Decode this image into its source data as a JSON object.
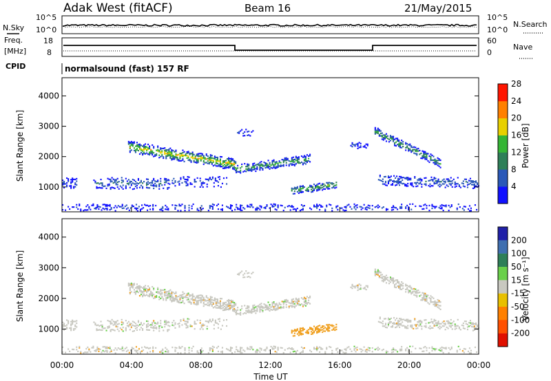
{
  "header": {
    "station": "Adak West (fitACF)",
    "beam": "Beam 16",
    "date": "21/May/2015"
  },
  "strip": {
    "nsky_label": "N.Sky",
    "nsky_ticks": [
      "10^5",
      "10^0"
    ],
    "nsearch_label": "N.Search",
    "nsearch_ticks": [
      "10^5",
      "10^0"
    ],
    "freq_label_1": "Freq.",
    "freq_label_2": "[MHz]",
    "freq_ticks": [
      "18",
      "8"
    ],
    "nave_label": "Nave",
    "nave_ticks": [
      "60",
      "0"
    ],
    "cpid_label": "CPID",
    "cpid_text": "normalsound (fast) 157 RF"
  },
  "chart_data": [
    {
      "type": "heatmap",
      "panel": "power",
      "ylabel": "Slant Range [km]",
      "xlabel": "",
      "ylim": [
        180,
        4600
      ],
      "yticks": [
        "1000",
        "2000",
        "3000",
        "4000"
      ],
      "colorbar": {
        "label": "Power [dB]",
        "ticks": [
          "4",
          "8",
          "12",
          "16",
          "20",
          "24",
          "28"
        ],
        "colors": [
          "#1010ff",
          "#2a58b8",
          "#2e7f58",
          "#35b535",
          "#e8d000",
          "#ff8000",
          "#ff1500"
        ]
      },
      "bands": [
        {
          "name": "4-8 dB",
          "color": "#1010ff"
        },
        {
          "name": "8-12 dB",
          "color": "#2a58b8"
        },
        {
          "name": "12-16 dB",
          "color": "#2e7f58"
        },
        {
          "name": "16-20 dB",
          "color": "#35b535"
        },
        {
          "name": "20-24 dB",
          "color": "#e8d000"
        },
        {
          "name": "24-28 dB",
          "color": "#ff8000"
        }
      ]
    },
    {
      "type": "heatmap",
      "panel": "velocity",
      "ylabel": "Slant Range [km]",
      "xlabel": "Time UT",
      "ylim": [
        180,
        4600
      ],
      "yticks": [
        "1000",
        "2000",
        "3000",
        "4000"
      ],
      "xticks": [
        "00:00",
        "04:00",
        "08:00",
        "12:00",
        "16:00",
        "20:00",
        "00:00"
      ],
      "colorbar": {
        "label": "Velocity [m s⁻¹]",
        "ticks": [
          "200",
          "100",
          "50",
          "15",
          "-15",
          "-50",
          "-100",
          "-200"
        ],
        "colors": [
          "#2020a8",
          "#3f6fb0",
          "#2e7f58",
          "#6ad04a",
          "#c8c8c0",
          "#e8c000",
          "#ff8000",
          "#ff5000",
          "#e01000"
        ]
      },
      "bands": [
        {
          "name": "-15 to 15",
          "color": "#c8c8c0"
        },
        {
          "name": "-50 to -15",
          "color": "#f0a020"
        },
        {
          "name": "50 to 100",
          "color": "#6ad04a"
        }
      ]
    }
  ],
  "time_range_hours": [
    0,
    24
  ]
}
